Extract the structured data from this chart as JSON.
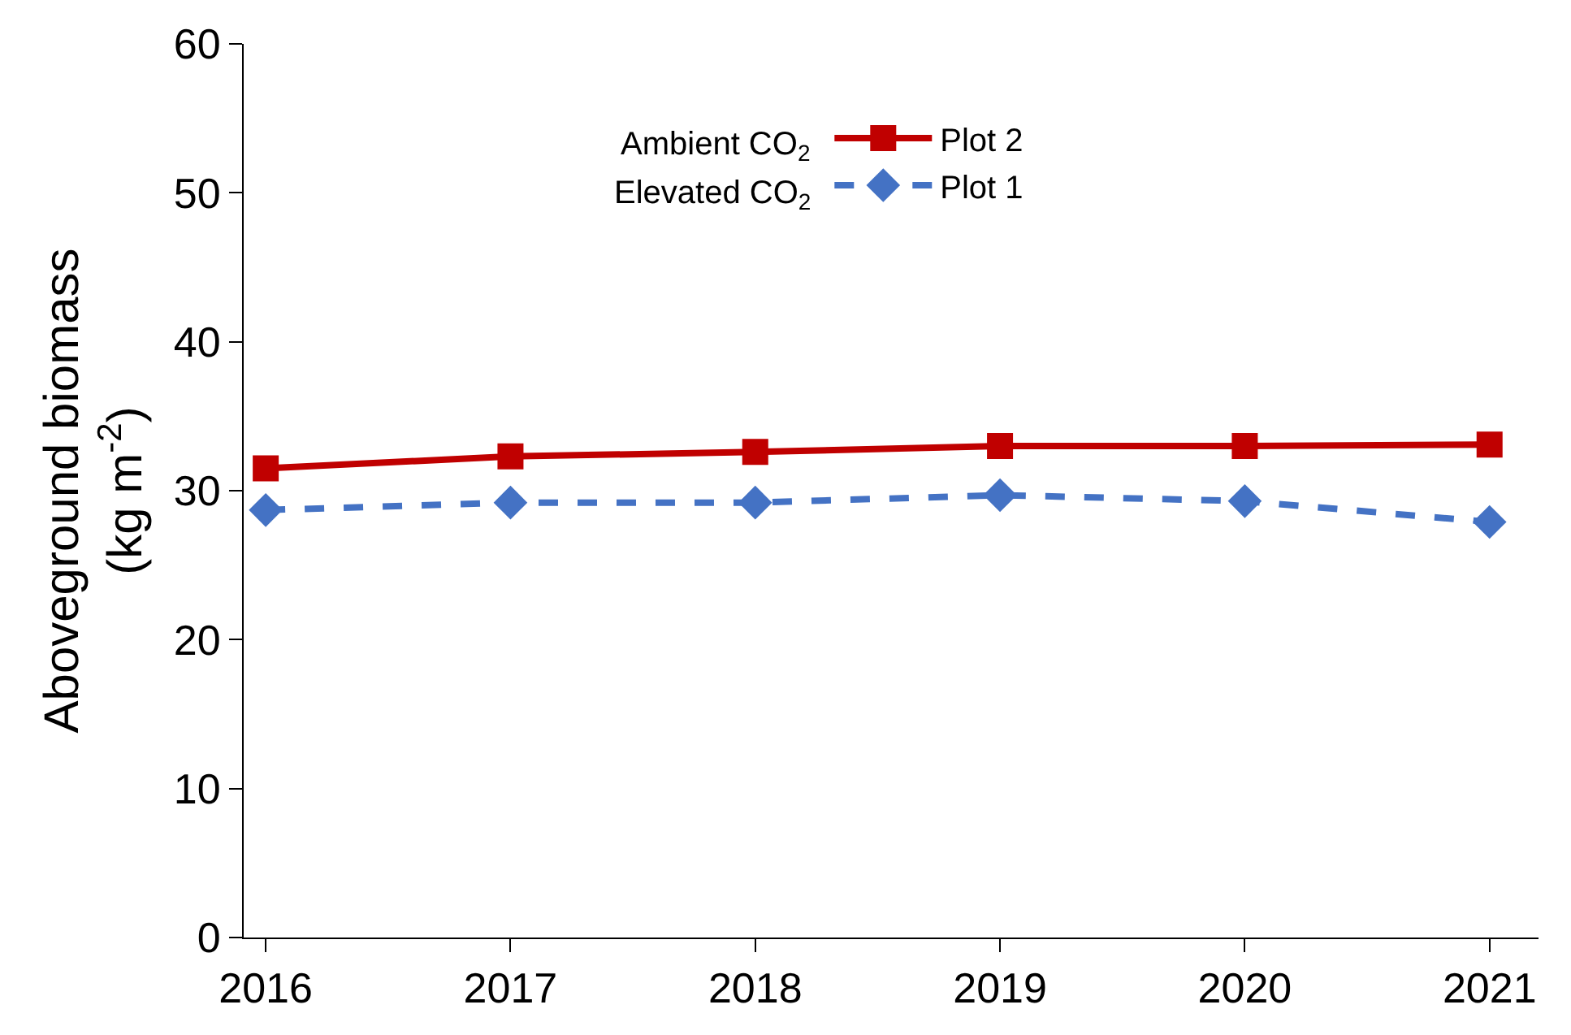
{
  "chart_data": {
    "type": "line",
    "x": [
      2016,
      2017,
      2018,
      2019,
      2020,
      2021
    ],
    "series": [
      {
        "name": "Plot 2",
        "color": "#c00000",
        "values": [
          31.5,
          32.3,
          32.6,
          33.0,
          33.0,
          33.1
        ],
        "marker": "square",
        "line_style": "solid"
      },
      {
        "name": "Plot 1",
        "color": "#4472c4",
        "values": [
          28.7,
          29.2,
          29.2,
          29.7,
          29.3,
          27.9
        ],
        "marker": "diamond",
        "line_style": "dashed"
      }
    ],
    "ylabel": "Aboveground biomass\n(kg m$^{-2}$)",
    "annotations": [
      "Ambient CO$_{2}$",
      "Elevated CO$_{2}$"
    ],
    "xlim": [
      2015.91,
      2021.2
    ],
    "xticks": [
      2016,
      2017,
      2018,
      2019,
      2020,
      2021
    ],
    "ylim": [
      0,
      60
    ],
    "yticks": [
      0,
      10,
      20,
      30,
      40,
      50,
      60
    ],
    "legend": "top"
  }
}
